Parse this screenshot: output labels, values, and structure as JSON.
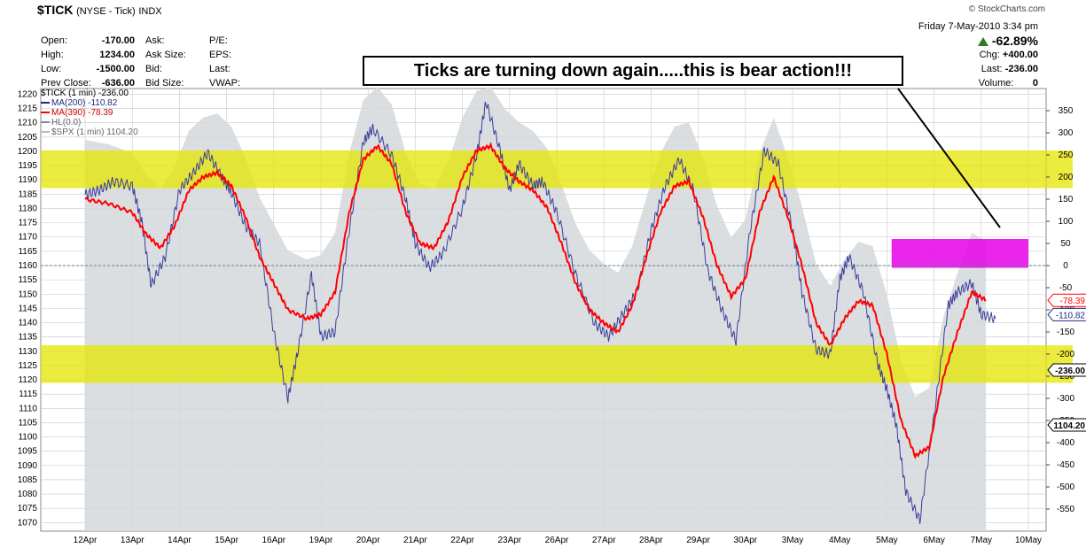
{
  "header": {
    "symbol": "$TICK",
    "exchange": "(NYSE - Tick)",
    "type": "INDX",
    "source": "© StockCharts.com",
    "date": "Friday  7-May-2010  3:34 pm"
  },
  "quote": {
    "open_label": "Open:",
    "open": "-170.00",
    "high_label": "High:",
    "high": "1234.00",
    "low_label": "Low:",
    "low": "-1500.00",
    "prev_label": "Prev Close:",
    "prev": "-636.00",
    "ask_label": "Ask:",
    "asksize_label": "Ask Size:",
    "bid_label": "Bid:",
    "bidsize_label": "Bid Size:",
    "pe_label": "P/E:",
    "eps_label": "EPS:",
    "last_label": "Last:",
    "vwap_label": "VWAP:",
    "pct": "-62.89%",
    "chg_label": "Chg:",
    "chg": "+400.00",
    "last2_label": "Last:",
    "last2": "-236.00",
    "volume_label": "Volume:",
    "volume": "0"
  },
  "annotation": "Ticks are turning down again.....this is bear action!!!",
  "legend": {
    "title": "$TICK (1 min) -236.00",
    "ma200": "MA(200) -110.82",
    "ma390": "MA(390) -78.39",
    "hl": "HL(0.0)",
    "spx": "$SPX (1 min) 1104.20"
  },
  "colors": {
    "tick": "#3b3d9a",
    "ma200": "#1d2a80",
    "ma390": "#ff0000",
    "ma390_band": "#e040e0",
    "spx_fill": "#d5d8da",
    "yellow": "#e6e600",
    "magenta": "#e600e6",
    "grid": "#c8c8c8"
  },
  "chart_data": {
    "type": "line",
    "title": "$TICK (1 min) -236.00",
    "x_dates": [
      "12Apr",
      "13Apr",
      "14Apr",
      "15Apr",
      "16Apr",
      "19Apr",
      "20Apr",
      "21Apr",
      "22Apr",
      "23Apr",
      "26Apr",
      "27Apr",
      "28Apr",
      "29Apr",
      "30Apr",
      "3May",
      "4May",
      "5May",
      "6May",
      "7May",
      "10May"
    ],
    "left_axis": {
      "label": "$SPX",
      "ticks": [
        1220,
        1215,
        1210,
        1205,
        1200,
        1195,
        1190,
        1185,
        1180,
        1175,
        1170,
        1165,
        1160,
        1155,
        1150,
        1145,
        1140,
        1135,
        1130,
        1125,
        1120,
        1115,
        1110,
        1105,
        1100,
        1095,
        1090,
        1085,
        1080,
        1075,
        1070
      ],
      "range": [
        1067,
        1222
      ]
    },
    "right_axis": {
      "label": "$TICK",
      "ticks": [
        350,
        300,
        250,
        200,
        150,
        100,
        50,
        0,
        -50,
        -100,
        -150,
        -200,
        -250,
        -300,
        -350,
        -400,
        -450,
        -500,
        -550
      ],
      "range": [
        -600,
        400
      ]
    },
    "right_labels": [
      {
        "text": "-78.39",
        "value": -78.39,
        "color": "#ff0000"
      },
      {
        "text": "-110.82",
        "value": -110.82,
        "color": "#1d2a80"
      },
      {
        "text": "-236.00",
        "value": -236,
        "color": "#000000"
      },
      {
        "text": "1104.20",
        "spx": 1104.2,
        "color": "#000000"
      }
    ],
    "zero_line": 0,
    "bands": [
      {
        "color": "yellow",
        "tick_from": 175,
        "tick_to": 260
      },
      {
        "color": "yellow",
        "tick_from": -180,
        "tick_to": -265
      },
      {
        "color": "magenta",
        "tick_from": -5,
        "tick_to": 60,
        "x_from": 17.1,
        "x_to": 20.0
      }
    ],
    "series": [
      {
        "name": "$TICK (1 min)",
        "points": [
          [
            0,
            160
          ],
          [
            0.3,
            170
          ],
          [
            0.6,
            190
          ],
          [
            1.0,
            180
          ],
          [
            1.2,
            100
          ],
          [
            1.4,
            -45
          ],
          [
            1.7,
            20
          ],
          [
            2.0,
            170
          ],
          [
            2.3,
            210
          ],
          [
            2.6,
            255
          ],
          [
            2.9,
            200
          ],
          [
            3.1,
            165
          ],
          [
            3.4,
            90
          ],
          [
            3.7,
            50
          ],
          [
            4.0,
            -150
          ],
          [
            4.3,
            -300
          ],
          [
            4.5,
            -200
          ],
          [
            4.8,
            -20
          ],
          [
            5.0,
            -160
          ],
          [
            5.3,
            -150
          ],
          [
            5.6,
            80
          ],
          [
            5.9,
            280
          ],
          [
            6.1,
            310
          ],
          [
            6.5,
            250
          ],
          [
            6.8,
            150
          ],
          [
            7.0,
            50
          ],
          [
            7.3,
            -5
          ],
          [
            7.6,
            30
          ],
          [
            8.0,
            130
          ],
          [
            8.3,
            250
          ],
          [
            8.5,
            370
          ],
          [
            8.8,
            260
          ],
          [
            9.0,
            170
          ],
          [
            9.2,
            230
          ],
          [
            9.5,
            180
          ],
          [
            9.7,
            190
          ],
          [
            10.0,
            120
          ],
          [
            10.4,
            -20
          ],
          [
            10.8,
            -130
          ],
          [
            11.1,
            -160
          ],
          [
            11.4,
            -110
          ],
          [
            11.7,
            -60
          ],
          [
            12.0,
            80
          ],
          [
            12.3,
            180
          ],
          [
            12.6,
            240
          ],
          [
            12.9,
            170
          ],
          [
            13.2,
            -10
          ],
          [
            13.5,
            -100
          ],
          [
            13.8,
            -170
          ],
          [
            14.1,
            80
          ],
          [
            14.4,
            260
          ],
          [
            14.7,
            230
          ],
          [
            15.0,
            80
          ],
          [
            15.2,
            -60
          ],
          [
            15.5,
            -190
          ],
          [
            15.8,
            -200
          ],
          [
            16.0,
            -30
          ],
          [
            16.2,
            20
          ],
          [
            16.5,
            -60
          ],
          [
            16.8,
            -220
          ],
          [
            17.0,
            -280
          ],
          [
            17.2,
            -360
          ],
          [
            17.4,
            -510
          ],
          [
            17.7,
            -575
          ],
          [
            18.0,
            -340
          ],
          [
            18.3,
            -90
          ],
          [
            18.5,
            -60
          ],
          [
            18.8,
            -40
          ],
          [
            19.0,
            -110
          ],
          [
            19.3,
            -120
          ]
        ]
      },
      {
        "name": "MA(390)",
        "points": [
          [
            0,
            150
          ],
          [
            0.5,
            140
          ],
          [
            1.0,
            120
          ],
          [
            1.3,
            70
          ],
          [
            1.6,
            40
          ],
          [
            1.9,
            90
          ],
          [
            2.2,
            170
          ],
          [
            2.5,
            200
          ],
          [
            2.8,
            210
          ],
          [
            3.1,
            180
          ],
          [
            3.4,
            110
          ],
          [
            3.7,
            20
          ],
          [
            4.0,
            -40
          ],
          [
            4.3,
            -100
          ],
          [
            4.7,
            -120
          ],
          [
            5.0,
            -110
          ],
          [
            5.3,
            -60
          ],
          [
            5.6,
            120
          ],
          [
            5.9,
            240
          ],
          [
            6.2,
            270
          ],
          [
            6.5,
            230
          ],
          [
            6.8,
            120
          ],
          [
            7.1,
            50
          ],
          [
            7.4,
            40
          ],
          [
            7.7,
            100
          ],
          [
            8.0,
            200
          ],
          [
            8.3,
            260
          ],
          [
            8.6,
            270
          ],
          [
            8.9,
            220
          ],
          [
            9.2,
            190
          ],
          [
            9.5,
            170
          ],
          [
            9.8,
            130
          ],
          [
            10.1,
            50
          ],
          [
            10.4,
            -40
          ],
          [
            10.7,
            -100
          ],
          [
            11.0,
            -130
          ],
          [
            11.3,
            -150
          ],
          [
            11.6,
            -90
          ],
          [
            11.9,
            20
          ],
          [
            12.2,
            120
          ],
          [
            12.5,
            180
          ],
          [
            12.8,
            190
          ],
          [
            13.1,
            110
          ],
          [
            13.4,
            0
          ],
          [
            13.7,
            -70
          ],
          [
            14.0,
            -30
          ],
          [
            14.3,
            120
          ],
          [
            14.6,
            200
          ],
          [
            14.9,
            110
          ],
          [
            15.2,
            0
          ],
          [
            15.5,
            -130
          ],
          [
            15.8,
            -180
          ],
          [
            16.1,
            -120
          ],
          [
            16.4,
            -80
          ],
          [
            16.7,
            -90
          ],
          [
            17.0,
            -200
          ],
          [
            17.3,
            -350
          ],
          [
            17.6,
            -430
          ],
          [
            17.9,
            -410
          ],
          [
            18.2,
            -250
          ],
          [
            18.5,
            -150
          ],
          [
            18.8,
            -60
          ],
          [
            19.1,
            -78
          ]
        ]
      }
    ]
  }
}
